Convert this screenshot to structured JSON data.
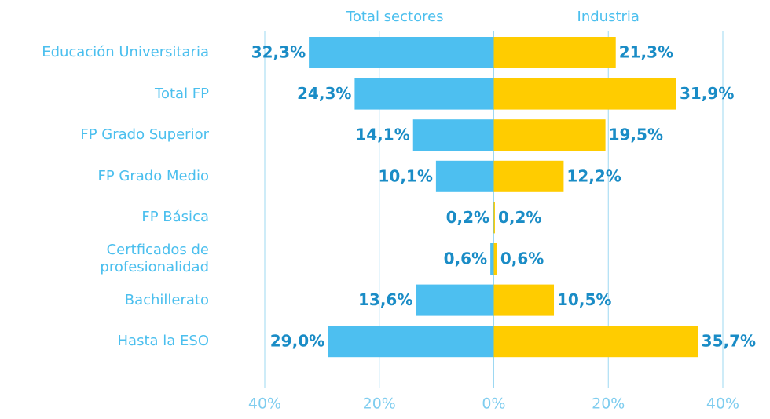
{
  "chart_data": {
    "type": "butterfly",
    "categories": [
      "Educación Universitaria",
      "Total FP",
      "FP Grado Superior",
      "FP Grado Medio",
      "FP Básica",
      "Certficados de profesionalidad",
      "Bachillerato",
      "Hasta la ESO"
    ],
    "series": [
      {
        "name": "Total sectores",
        "color": "#4dbff0",
        "values": [
          32.3,
          24.3,
          14.1,
          10.1,
          0.2,
          0.6,
          13.6,
          29.0
        ],
        "value_labels": [
          "32,3%",
          "24,3%",
          "14,1%",
          "10,1%",
          "0,2%",
          "0,6%",
          "13,6%",
          "29,0%"
        ]
      },
      {
        "name": "Industria",
        "color": "#ffcc00",
        "values": [
          21.3,
          31.9,
          19.5,
          12.2,
          0.2,
          0.6,
          10.5,
          35.7
        ],
        "value_labels": [
          "21,3%",
          "31,9%",
          "19,5%",
          "12,2%",
          "0,2%",
          "0,6%",
          "10,5%",
          "35,7%"
        ]
      }
    ],
    "xlim": [
      -40,
      40
    ],
    "xticks": [
      {
        "value": -40,
        "label": "40%"
      },
      {
        "value": -20,
        "label": "20%"
      },
      {
        "value": 0,
        "label": "0%"
      },
      {
        "value": 20,
        "label": "20%"
      },
      {
        "value": 40,
        "label": "40%"
      }
    ],
    "grid": true
  }
}
